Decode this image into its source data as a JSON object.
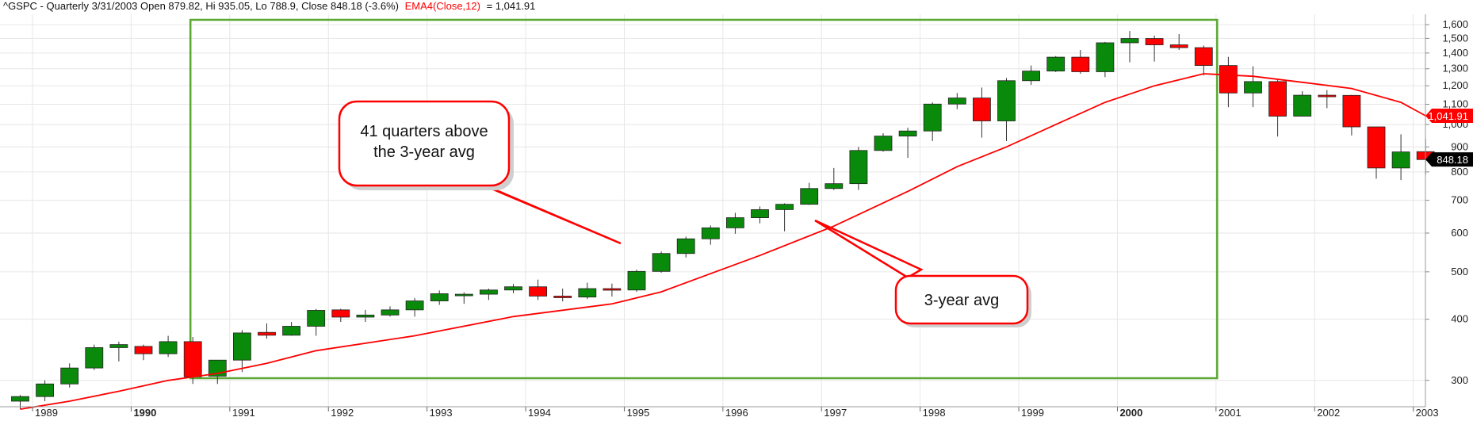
{
  "header": {
    "symbol_info": "^GSPC - Quarterly 3/31/2003 Open 879.82, Hi 935.05, Lo 788.9, Close 848.18 (-3.6%)",
    "indicator": "EMA4(Close,12)",
    "indicator_value": "= 1,041.91"
  },
  "colors": {
    "up": "#0a8a0a",
    "down": "#ff0000",
    "ema": "#ff0000",
    "box": "#5aa832",
    "grid": "#e6e6e6",
    "callout_border": "#ff0000"
  },
  "callouts": {
    "quarters_line1": "41 quarters above",
    "quarters_line2": "the 3-year avg",
    "avg_label": "3-year avg"
  },
  "chart_data": {
    "type": "candlestick",
    "scale": "log",
    "ylim": [
      265,
      1680
    ],
    "x_years": [
      "1989",
      "1990",
      "1991",
      "1992",
      "1993",
      "1994",
      "1995",
      "1996",
      "1997",
      "1998",
      "1999",
      "2000",
      "2001",
      "2002",
      "2003"
    ],
    "bold_years": [
      "1990",
      "2000"
    ],
    "y_ticks": [
      300,
      400,
      500,
      600,
      700,
      800,
      900,
      1000,
      1100,
      1200,
      1300,
      1400,
      1500,
      1600
    ],
    "y_tick_labels": [
      "300",
      "400",
      "500",
      "600",
      "700",
      "800",
      "900",
      "1,000",
      "1,100",
      "1,200",
      "1,300",
      "1,400",
      "1,500",
      "1,600"
    ],
    "last_ema_label": "1,041.91",
    "last_close_label": "848.18",
    "last_ema": 1041.91,
    "last_close": 848.18,
    "highlight_range": {
      "start": "1990-Q3",
      "end": "2000-Q4"
    },
    "candles": [
      {
        "q": "1988-Q4",
        "o": 272,
        "h": 280,
        "l": 262,
        "c": 278
      },
      {
        "q": "1989-Q1",
        "o": 278,
        "h": 300,
        "l": 272,
        "c": 295
      },
      {
        "q": "1989-Q2",
        "o": 295,
        "h": 325,
        "l": 290,
        "c": 318
      },
      {
        "q": "1989-Q3",
        "o": 318,
        "h": 355,
        "l": 315,
        "c": 350
      },
      {
        "q": "1989-Q4",
        "o": 350,
        "h": 360,
        "l": 328,
        "c": 355
      },
      {
        "q": "1990-Q1",
        "o": 352,
        "h": 355,
        "l": 330,
        "c": 340
      },
      {
        "q": "1990-Q2",
        "o": 340,
        "h": 370,
        "l": 335,
        "c": 360
      },
      {
        "q": "1990-Q3",
        "o": 360,
        "h": 368,
        "l": 295,
        "c": 305
      },
      {
        "q": "1990-Q4",
        "o": 306,
        "h": 330,
        "l": 295,
        "c": 330
      },
      {
        "q": "1991-Q1",
        "o": 330,
        "h": 380,
        "l": 312,
        "c": 375
      },
      {
        "q": "1991-Q2",
        "o": 376,
        "h": 392,
        "l": 365,
        "c": 371
      },
      {
        "q": "1991-Q3",
        "o": 371,
        "h": 395,
        "l": 370,
        "c": 387
      },
      {
        "q": "1991-Q4",
        "o": 387,
        "h": 420,
        "l": 370,
        "c": 417
      },
      {
        "q": "1992-Q1",
        "o": 418,
        "h": 420,
        "l": 395,
        "c": 404
      },
      {
        "q": "1992-Q2",
        "o": 404,
        "h": 418,
        "l": 395,
        "c": 408
      },
      {
        "q": "1992-Q3",
        "o": 408,
        "h": 425,
        "l": 405,
        "c": 418
      },
      {
        "q": "1992-Q4",
        "o": 418,
        "h": 442,
        "l": 405,
        "c": 436
      },
      {
        "q": "1993-Q1",
        "o": 436,
        "h": 458,
        "l": 428,
        "c": 451
      },
      {
        "q": "1993-Q2",
        "o": 450,
        "h": 454,
        "l": 430,
        "c": 450
      },
      {
        "q": "1993-Q3",
        "o": 450,
        "h": 462,
        "l": 438,
        "c": 459
      },
      {
        "q": "1993-Q4",
        "o": 459,
        "h": 472,
        "l": 452,
        "c": 466
      },
      {
        "q": "1994-Q1",
        "o": 466,
        "h": 482,
        "l": 438,
        "c": 446
      },
      {
        "q": "1994-Q2",
        "o": 446,
        "h": 462,
        "l": 435,
        "c": 444
      },
      {
        "q": "1994-Q3",
        "o": 444,
        "h": 475,
        "l": 440,
        "c": 462
      },
      {
        "q": "1994-Q4",
        "o": 462,
        "h": 473,
        "l": 445,
        "c": 459
      },
      {
        "q": "1995-Q1",
        "o": 459,
        "h": 505,
        "l": 455,
        "c": 501
      },
      {
        "q": "1995-Q2",
        "o": 501,
        "h": 550,
        "l": 498,
        "c": 545
      },
      {
        "q": "1995-Q3",
        "o": 545,
        "h": 590,
        "l": 535,
        "c": 584
      },
      {
        "q": "1995-Q4",
        "o": 584,
        "h": 622,
        "l": 568,
        "c": 615
      },
      {
        "q": "1996-Q1",
        "o": 615,
        "h": 660,
        "l": 598,
        "c": 645
      },
      {
        "q": "1996-Q2",
        "o": 645,
        "h": 680,
        "l": 628,
        "c": 670
      },
      {
        "q": "1996-Q3",
        "o": 670,
        "h": 690,
        "l": 605,
        "c": 687
      },
      {
        "q": "1996-Q4",
        "o": 687,
        "h": 760,
        "l": 685,
        "c": 740
      },
      {
        "q": "1997-Q1",
        "o": 740,
        "h": 815,
        "l": 735,
        "c": 757
      },
      {
        "q": "1997-Q2",
        "o": 757,
        "h": 900,
        "l": 735,
        "c": 885
      },
      {
        "q": "1997-Q3",
        "o": 885,
        "h": 960,
        "l": 880,
        "c": 947
      },
      {
        "q": "1997-Q4",
        "o": 947,
        "h": 985,
        "l": 855,
        "c": 970
      },
      {
        "q": "1998-Q1",
        "o": 970,
        "h": 1110,
        "l": 925,
        "c": 1101
      },
      {
        "q": "1998-Q2",
        "o": 1101,
        "h": 1160,
        "l": 1075,
        "c": 1133
      },
      {
        "q": "1998-Q3",
        "o": 1133,
        "h": 1190,
        "l": 940,
        "c": 1017
      },
      {
        "q": "1998-Q4",
        "o": 1017,
        "h": 1245,
        "l": 925,
        "c": 1229
      },
      {
        "q": "1999-Q1",
        "o": 1229,
        "h": 1320,
        "l": 1205,
        "c": 1286
      },
      {
        "q": "1999-Q2",
        "o": 1286,
        "h": 1380,
        "l": 1280,
        "c": 1373
      },
      {
        "q": "1999-Q3",
        "o": 1373,
        "h": 1420,
        "l": 1270,
        "c": 1282
      },
      {
        "q": "1999-Q4",
        "o": 1282,
        "h": 1475,
        "l": 1250,
        "c": 1469
      },
      {
        "q": "2000-Q1",
        "o": 1469,
        "h": 1553,
        "l": 1340,
        "c": 1499
      },
      {
        "q": "2000-Q2",
        "o": 1499,
        "h": 1520,
        "l": 1345,
        "c": 1455
      },
      {
        "q": "2000-Q3",
        "o": 1455,
        "h": 1530,
        "l": 1420,
        "c": 1436
      },
      {
        "q": "2000-Q4",
        "o": 1436,
        "h": 1450,
        "l": 1260,
        "c": 1320
      },
      {
        "q": "2001-Q1",
        "o": 1320,
        "h": 1375,
        "l": 1085,
        "c": 1160
      },
      {
        "q": "2001-Q2",
        "o": 1160,
        "h": 1315,
        "l": 1085,
        "c": 1224
      },
      {
        "q": "2001-Q3",
        "o": 1224,
        "h": 1240,
        "l": 945,
        "c": 1040
      },
      {
        "q": "2001-Q4",
        "o": 1040,
        "h": 1170,
        "l": 1040,
        "c": 1148
      },
      {
        "q": "2002-Q1",
        "o": 1148,
        "h": 1176,
        "l": 1080,
        "c": 1147
      },
      {
        "q": "2002-Q2",
        "o": 1147,
        "h": 1150,
        "l": 950,
        "c": 989
      },
      {
        "q": "2002-Q3",
        "o": 989,
        "h": 990,
        "l": 775,
        "c": 815
      },
      {
        "q": "2002-Q4",
        "o": 815,
        "h": 955,
        "l": 770,
        "c": 879
      },
      {
        "q": "2003-Q1",
        "o": 880,
        "h": 935,
        "l": 789,
        "c": 848
      }
    ],
    "ema": [
      {
        "q": "1988-Q4",
        "v": 262
      },
      {
        "q": "1989-Q2",
        "v": 272
      },
      {
        "q": "1989-Q4",
        "v": 285
      },
      {
        "q": "1990-Q2",
        "v": 300
      },
      {
        "q": "1990-Q4",
        "v": 310
      },
      {
        "q": "1991-Q2",
        "v": 325
      },
      {
        "q": "1991-Q4",
        "v": 345
      },
      {
        "q": "1992-Q4",
        "v": 370
      },
      {
        "q": "1993-Q4",
        "v": 405
      },
      {
        "q": "1994-Q4",
        "v": 430
      },
      {
        "q": "1995-Q2",
        "v": 455
      },
      {
        "q": "1996-Q2",
        "v": 540
      },
      {
        "q": "1997-Q1",
        "v": 620
      },
      {
        "q": "1997-Q4",
        "v": 730
      },
      {
        "q": "1998-Q2",
        "v": 820
      },
      {
        "q": "1998-Q4",
        "v": 900
      },
      {
        "q": "1999-Q2",
        "v": 1000
      },
      {
        "q": "1999-Q4",
        "v": 1110
      },
      {
        "q": "2000-Q2",
        "v": 1200
      },
      {
        "q": "2000-Q4",
        "v": 1270
      },
      {
        "q": "2001-Q2",
        "v": 1255
      },
      {
        "q": "2001-Q4",
        "v": 1220
      },
      {
        "q": "2002-Q2",
        "v": 1185
      },
      {
        "q": "2002-Q4",
        "v": 1110
      },
      {
        "q": "2003-Q1",
        "v": 1041.91
      }
    ]
  }
}
